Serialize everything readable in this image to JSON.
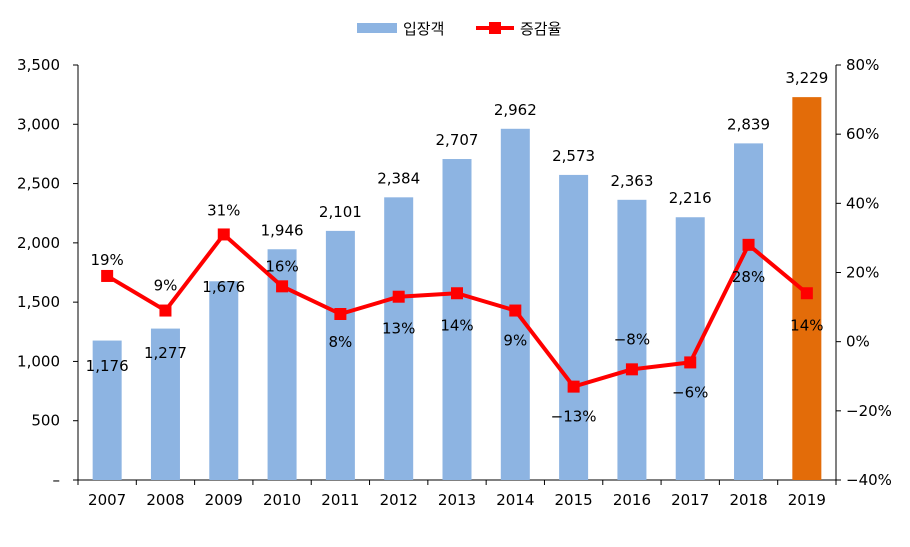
{
  "chart_data": {
    "type": "bar",
    "categories": [
      "2007",
      "2008",
      "2009",
      "2010",
      "2011",
      "2012",
      "2013",
      "2014",
      "2015",
      "2016",
      "2017",
      "2018",
      "2019"
    ],
    "series": [
      {
        "name": "입장객",
        "type": "bar",
        "axis": "left",
        "values": [
          1176,
          1277,
          1676,
          1946,
          2101,
          2384,
          2707,
          2962,
          2573,
          2363,
          2216,
          2839,
          3229
        ],
        "labels": [
          "1,176",
          "1,277",
          "1,676",
          "1,946",
          "2,101",
          "2,384",
          "2,707",
          "2,962",
          "2,573",
          "2,363",
          "2,216",
          "2,839",
          "3,229"
        ],
        "color": "#8DB4E2",
        "highlight_color": "#E36C09",
        "highlight_index": 12
      },
      {
        "name": "증감율",
        "type": "line",
        "axis": "right",
        "values": [
          19,
          9,
          31,
          16,
          8,
          13,
          14,
          9,
          -13,
          -8,
          -6,
          28,
          14
        ],
        "labels": [
          "19%",
          "9%",
          "31%",
          "16%",
          "8%",
          "13%",
          "14%",
          "9%",
          "−13%",
          "−8%",
          "−6%",
          "28%",
          "14%"
        ],
        "color": "#FF0000"
      }
    ],
    "left_axis": {
      "ylim": [
        0,
        3500
      ],
      "ticks": [
        0,
        500,
        1000,
        1500,
        2000,
        2500,
        3000,
        3500
      ],
      "tick_labels": [
        "–",
        "500",
        "1,000",
        "1,500",
        "2,000",
        "2,500",
        "3,000",
        "3,500"
      ]
    },
    "right_axis": {
      "ylim": [
        -40,
        80
      ],
      "ticks": [
        -40,
        -20,
        0,
        20,
        40,
        60,
        80
      ],
      "tick_labels": [
        "−40%",
        "−20%",
        "0%",
        "20%",
        "40%",
        "60%",
        "80%"
      ]
    },
    "legend": {
      "position": "top"
    },
    "grid": false
  }
}
